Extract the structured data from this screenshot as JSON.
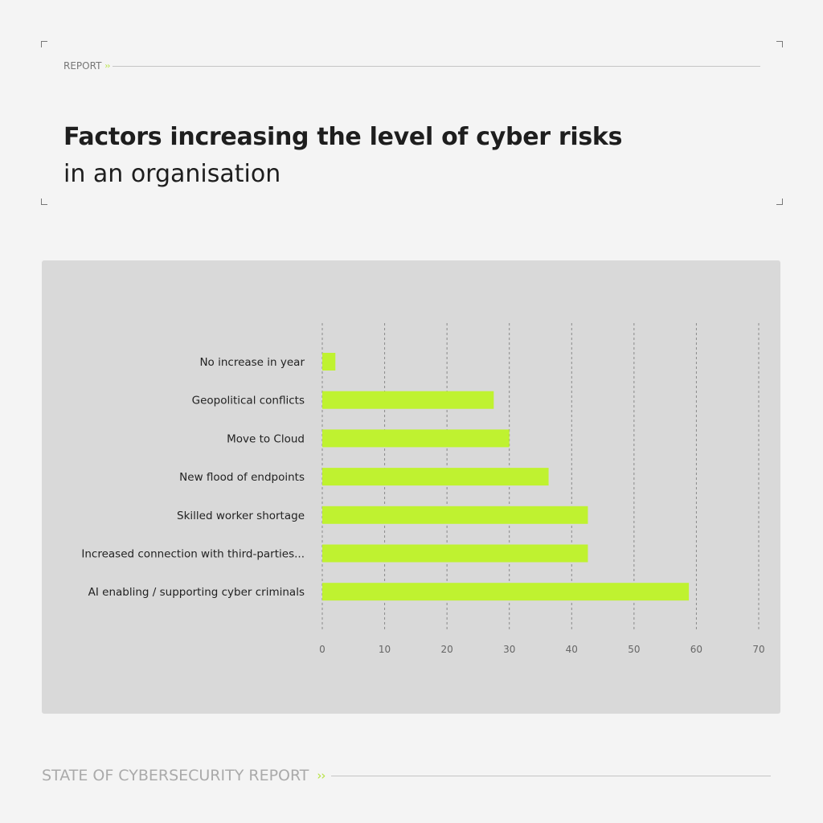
{
  "header": {
    "kicker": "REPORT",
    "title_bold": "Factors increasing the level of cyber risks",
    "title_light": "in an organisation"
  },
  "footer": {
    "label": "STATE OF CYBERSECURITY REPORT"
  },
  "chev_glyph": "››",
  "colors": {
    "bar": "#bff230",
    "panel": "#d9d9d9",
    "page": "#f4f4f4",
    "accent": "#b5e23a"
  },
  "chart_data": {
    "type": "bar",
    "orientation": "horizontal",
    "categories": [
      "No increase in year",
      "Geopolitical conflicts",
      "Move to Cloud",
      "New flood of endpoints",
      "Skilled worker shortage",
      "Increased connection with third-parties...",
      "AI enabling / supporting cyber criminals"
    ],
    "values": [
      2.1,
      27.5,
      30,
      36.3,
      42.6,
      42.6,
      58.8
    ],
    "xlim": [
      0,
      70
    ],
    "xticks": [
      0,
      10,
      20,
      30,
      40,
      50,
      60,
      70
    ],
    "grid": "vertical dashed",
    "title": "Factors increasing the level of cyber risks in an organisation",
    "xlabel": "",
    "ylabel": ""
  }
}
